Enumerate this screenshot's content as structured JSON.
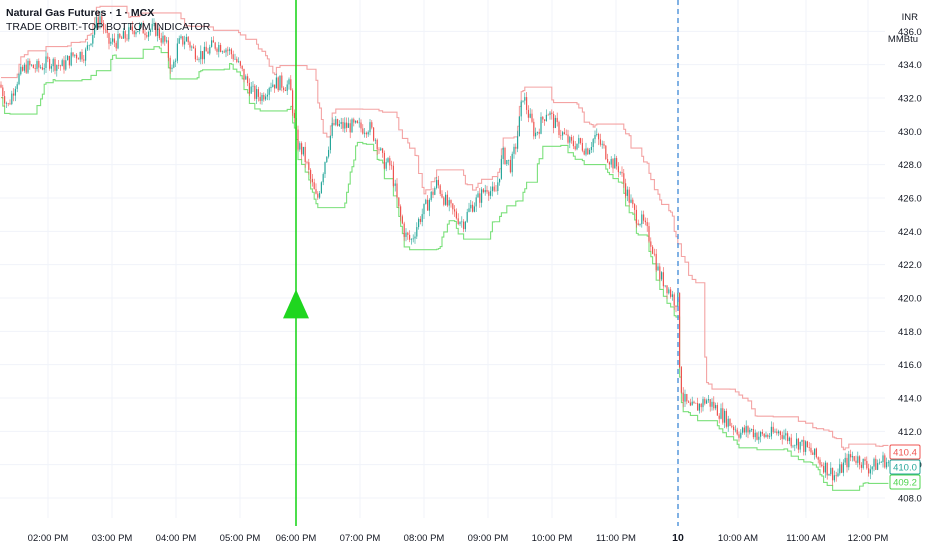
{
  "header": {
    "title": "Natural Gas Futures · 1 · MCX",
    "indicator": "TRADE ORBIT:-TOP BOTTOM INDICATOR",
    "currency": "INR",
    "unit": "MMBtu"
  },
  "chart_data": {
    "type": "candlestick",
    "ylim": [
      406.8,
      437.4
    ],
    "y_ticks": [
      408.0,
      410.0,
      412.0,
      414.0,
      416.0,
      418.0,
      420.0,
      422.0,
      424.0,
      426.0,
      428.0,
      430.0,
      432.0,
      434.0,
      436.0
    ],
    "x_ticks": [
      "02:00 PM",
      "03:00 PM",
      "04:00 PM",
      "05:00 PM",
      "06:00 PM",
      "07:00 PM",
      "08:00 PM",
      "09:00 PM",
      "10:00 PM",
      "11:00 PM",
      "10",
      "10:00 AM",
      "11:00 AM",
      "12:00 PM"
    ],
    "x_ticks_bold": [
      "10"
    ],
    "signal": {
      "type": "buy-arrow",
      "time": "06:00 PM",
      "price": 419.5
    },
    "session_break": "10",
    "colors": {
      "up": "#26a69a",
      "down": "#ef5350",
      "top_line": "#f4a3a3",
      "bottom_line": "#7be07b",
      "signal": "#1fd61f",
      "session": "#4a90d9"
    },
    "price_labels": [
      {
        "value": 410.4,
        "color": "#ef5350"
      },
      {
        "value": 410.0,
        "color": "#26a69a"
      },
      {
        "value": 409.2,
        "color": "#4cd44c"
      }
    ],
    "price_path": [
      [
        0,
        432.8
      ],
      [
        8,
        431.5
      ],
      [
        16,
        433.0
      ],
      [
        26,
        433.9
      ],
      [
        38,
        433.8
      ],
      [
        50,
        434.2
      ],
      [
        62,
        433.9
      ],
      [
        74,
        434.6
      ],
      [
        86,
        434.7
      ],
      [
        94,
        436.2
      ],
      [
        100,
        436.9
      ],
      [
        108,
        435.3
      ],
      [
        118,
        435.4
      ],
      [
        126,
        435.7
      ],
      [
        134,
        436.2
      ],
      [
        146,
        436.1
      ],
      [
        156,
        436.1
      ],
      [
        166,
        435.2
      ],
      [
        172,
        433.6
      ],
      [
        178,
        435.2
      ],
      [
        186,
        435.6
      ],
      [
        194,
        434.8
      ],
      [
        204,
        434.6
      ],
      [
        214,
        435.2
      ],
      [
        224,
        435.1
      ],
      [
        234,
        434.5
      ],
      [
        244,
        433.3
      ],
      [
        254,
        432.2
      ],
      [
        262,
        432.1
      ],
      [
        270,
        432.9
      ],
      [
        280,
        432.9
      ],
      [
        290,
        432.7
      ],
      [
        297,
        429.3
      ],
      [
        304,
        428.6
      ],
      [
        311,
        427.0
      ],
      [
        317,
        425.8
      ],
      [
        325,
        428.3
      ],
      [
        333,
        430.4
      ],
      [
        341,
        430.3
      ],
      [
        351,
        430.3
      ],
      [
        361,
        430.2
      ],
      [
        369,
        430.3
      ],
      [
        377,
        429.4
      ],
      [
        383,
        428.2
      ],
      [
        391,
        427.9
      ],
      [
        399,
        425.2
      ],
      [
        405,
        423.8
      ],
      [
        411,
        423.4
      ],
      [
        419,
        424.7
      ],
      [
        427,
        425.6
      ],
      [
        437,
        426.9
      ],
      [
        447,
        425.6
      ],
      [
        455,
        425.0
      ],
      [
        463,
        424.5
      ],
      [
        471,
        425.5
      ],
      [
        479,
        426.0
      ],
      [
        487,
        426.7
      ],
      [
        495,
        426.1
      ],
      [
        503,
        428.6
      ],
      [
        511,
        427.9
      ],
      [
        517,
        429.5
      ],
      [
        523,
        432.2
      ],
      [
        529,
        430.9
      ],
      [
        535,
        429.8
      ],
      [
        541,
        430.5
      ],
      [
        547,
        431.3
      ],
      [
        555,
        430.4
      ],
      [
        563,
        429.8
      ],
      [
        571,
        429.2
      ],
      [
        579,
        429.3
      ],
      [
        587,
        428.9
      ],
      [
        595,
        429.7
      ],
      [
        603,
        429.0
      ],
      [
        611,
        428.2
      ],
      [
        619,
        427.8
      ],
      [
        627,
        426.3
      ],
      [
        635,
        425.0
      ],
      [
        643,
        424.5
      ],
      [
        651,
        423.4
      ],
      [
        659,
        421.4
      ],
      [
        667,
        420.7
      ],
      [
        675,
        419.8
      ],
      [
        678,
        419.9
      ],
      [
        680,
        415.2
      ],
      [
        683,
        414.0
      ],
      [
        690,
        413.3
      ],
      [
        698,
        413.5
      ],
      [
        706,
        413.9
      ],
      [
        714,
        413.5
      ],
      [
        722,
        413.0
      ],
      [
        730,
        412.5
      ],
      [
        740,
        411.9
      ],
      [
        750,
        412.1
      ],
      [
        760,
        411.7
      ],
      [
        770,
        411.8
      ],
      [
        780,
        412.0
      ],
      [
        790,
        411.5
      ],
      [
        800,
        411.3
      ],
      [
        810,
        410.8
      ],
      [
        820,
        410.2
      ],
      [
        828,
        409.7
      ],
      [
        836,
        409.3
      ],
      [
        844,
        410.0
      ],
      [
        852,
        410.5
      ],
      [
        860,
        410.3
      ],
      [
        868,
        409.8
      ],
      [
        876,
        410.0
      ],
      [
        884,
        410.3
      ],
      [
        890,
        410.0
      ]
    ]
  }
}
